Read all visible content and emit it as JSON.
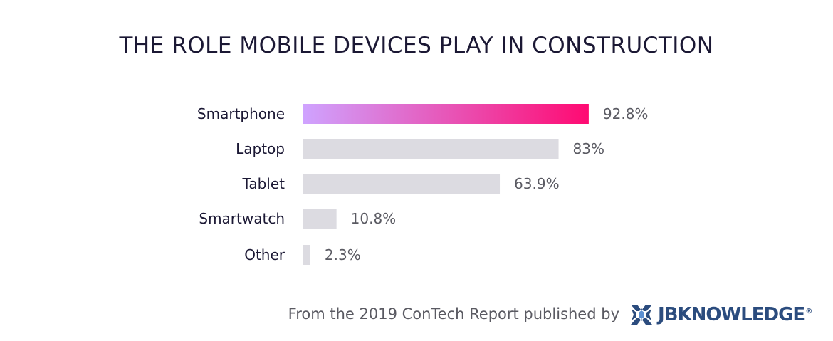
{
  "chart_data": {
    "type": "bar",
    "orientation": "horizontal",
    "title": "THE ROLE MOBILE DEVICES PLAY IN CONSTRUCTION",
    "categories": [
      "Smartphone",
      "Laptop",
      "Tablet",
      "Smartwatch",
      "Other"
    ],
    "values": [
      92.8,
      83,
      63.9,
      10.8,
      2.3
    ],
    "value_labels": [
      "92.8%",
      "83%",
      "63.9%",
      "10.8%",
      "2.3%"
    ],
    "xlim": [
      0,
      100
    ],
    "grid": false,
    "highlight_index": 0,
    "colors": {
      "highlight_start": "#cfa3ff",
      "highlight_end": "#ff0a72",
      "bar": "#dcdbe1",
      "category_label": "#1b1834",
      "value_label": "#5a5a62"
    }
  },
  "footer": {
    "source_text": "From the 2019 ConTech Report published by",
    "logo_text": "JBKNOWLEDGE",
    "logo_mark": "®",
    "logo_icon": "jbknowledge-logo-icon",
    "logo_color": "#2b4c7e"
  }
}
